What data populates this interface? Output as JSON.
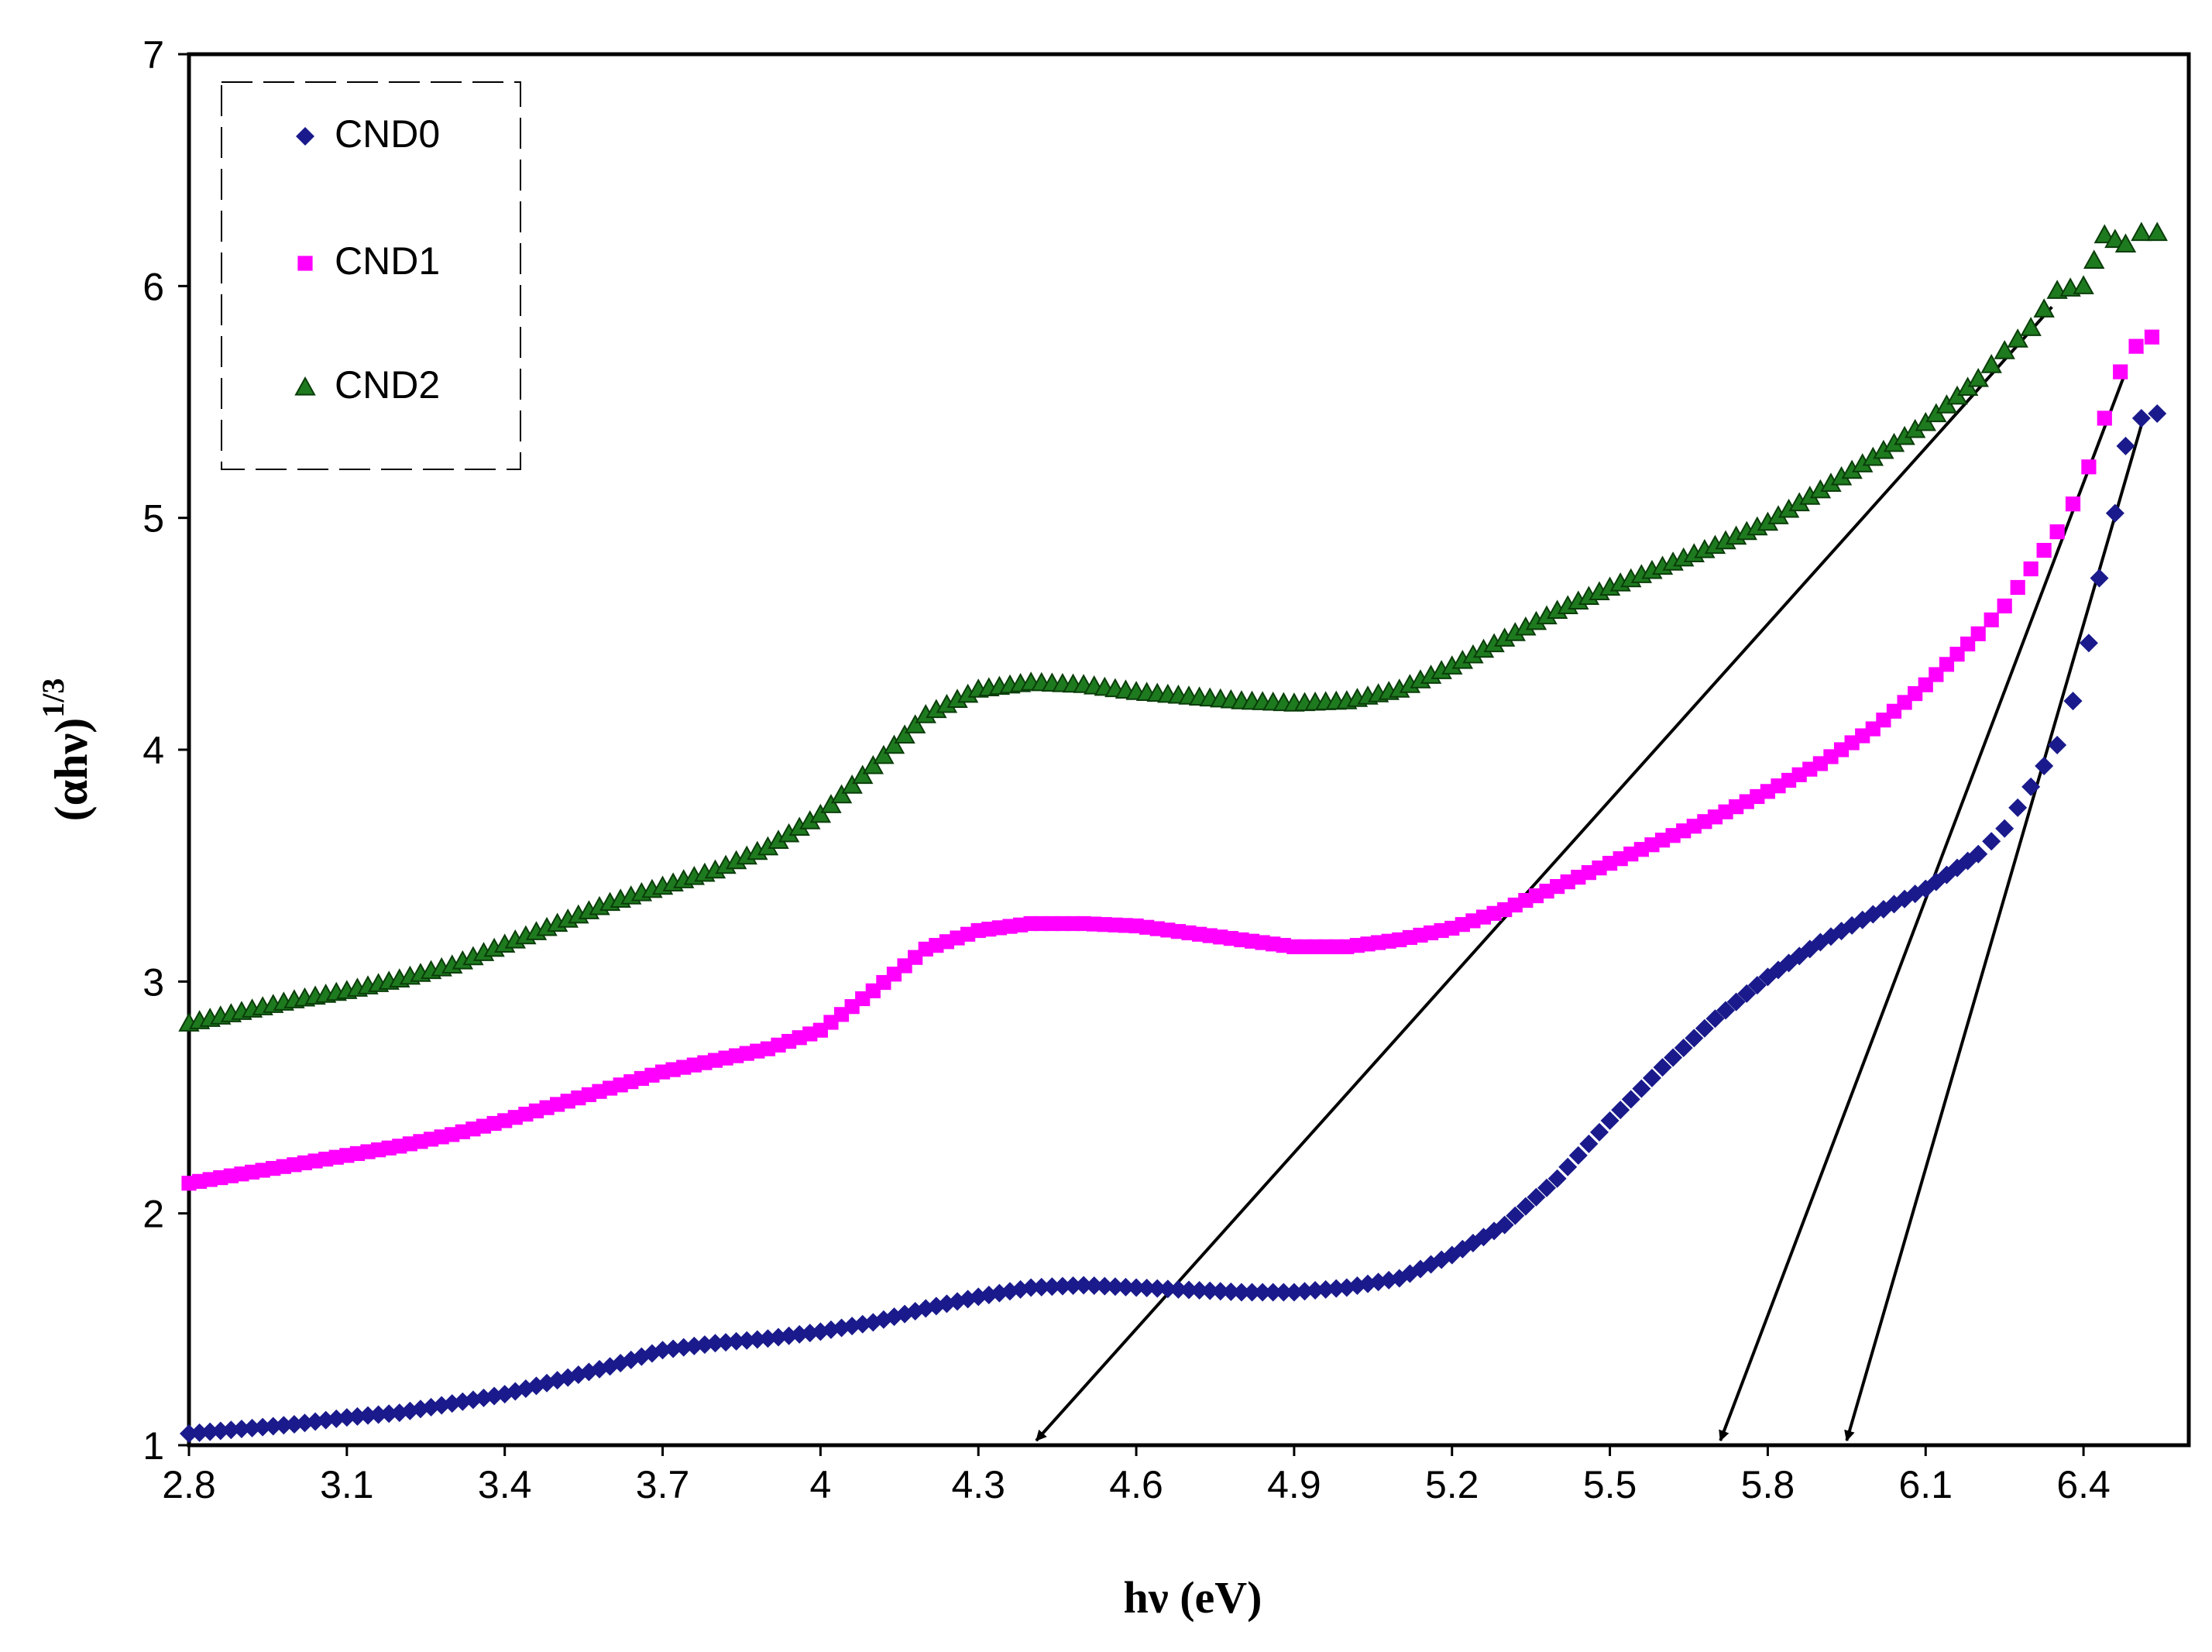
{
  "chart_data": {
    "type": "scatter",
    "title": "",
    "xlabel": "hν (eV)",
    "ylabel": "(αhν)",
    "ylabel_exponent": "1/3",
    "xlim": [
      2.8,
      6.6
    ],
    "ylim": [
      1,
      7
    ],
    "x_ticks": [
      "2.8",
      "3.1",
      "3.4",
      "3.7",
      "4",
      "4.3",
      "4.6",
      "4.9",
      "5.2",
      "5.5",
      "5.8",
      "6.1",
      "6.4"
    ],
    "y_ticks": [
      "1",
      "2",
      "3",
      "4",
      "5",
      "6",
      "7"
    ],
    "legend_position": "top-left",
    "series": [
      {
        "name": "CND0",
        "marker": "diamond",
        "color": "#1a1a8c",
        "points": [
          [
            2.8,
            1.05
          ],
          [
            2.9,
            1.07
          ],
          [
            3.0,
            1.09
          ],
          [
            3.1,
            1.12
          ],
          [
            3.2,
            1.14
          ],
          [
            3.3,
            1.18
          ],
          [
            3.4,
            1.22
          ],
          [
            3.5,
            1.28
          ],
          [
            3.6,
            1.34
          ],
          [
            3.7,
            1.41
          ],
          [
            3.8,
            1.44
          ],
          [
            3.9,
            1.46
          ],
          [
            4.0,
            1.49
          ],
          [
            4.1,
            1.53
          ],
          [
            4.2,
            1.59
          ],
          [
            4.3,
            1.64
          ],
          [
            4.4,
            1.68
          ],
          [
            4.5,
            1.69
          ],
          [
            4.6,
            1.68
          ],
          [
            4.7,
            1.67
          ],
          [
            4.8,
            1.66
          ],
          [
            4.9,
            1.66
          ],
          [
            5.0,
            1.68
          ],
          [
            5.1,
            1.72
          ],
          [
            5.2,
            1.82
          ],
          [
            5.3,
            1.95
          ],
          [
            5.4,
            2.15
          ],
          [
            5.5,
            2.4
          ],
          [
            5.6,
            2.63
          ],
          [
            5.7,
            2.84
          ],
          [
            5.8,
            3.02
          ],
          [
            5.9,
            3.17
          ],
          [
            6.0,
            3.29
          ],
          [
            6.1,
            3.4
          ],
          [
            6.2,
            3.55
          ],
          [
            6.25,
            3.66
          ],
          [
            6.3,
            3.84
          ],
          [
            6.35,
            4.02
          ],
          [
            6.38,
            4.21
          ],
          [
            6.41,
            4.46
          ],
          [
            6.43,
            4.74
          ],
          [
            6.46,
            5.02
          ],
          [
            6.48,
            5.31
          ],
          [
            6.51,
            5.43
          ],
          [
            6.54,
            5.45
          ]
        ]
      },
      {
        "name": "CND1",
        "marker": "square",
        "color": "#ff00ff",
        "points": [
          [
            2.8,
            2.13
          ],
          [
            2.9,
            2.17
          ],
          [
            3.0,
            2.21
          ],
          [
            3.1,
            2.25
          ],
          [
            3.2,
            2.29
          ],
          [
            3.3,
            2.34
          ],
          [
            3.4,
            2.4
          ],
          [
            3.5,
            2.47
          ],
          [
            3.6,
            2.54
          ],
          [
            3.7,
            2.61
          ],
          [
            3.8,
            2.66
          ],
          [
            3.9,
            2.71
          ],
          [
            4.0,
            2.79
          ],
          [
            4.1,
            2.96
          ],
          [
            4.2,
            3.14
          ],
          [
            4.3,
            3.22
          ],
          [
            4.4,
            3.25
          ],
          [
            4.5,
            3.25
          ],
          [
            4.6,
            3.24
          ],
          [
            4.7,
            3.21
          ],
          [
            4.8,
            3.18
          ],
          [
            4.9,
            3.15
          ],
          [
            5.0,
            3.15
          ],
          [
            5.1,
            3.18
          ],
          [
            5.2,
            3.23
          ],
          [
            5.3,
            3.31
          ],
          [
            5.4,
            3.41
          ],
          [
            5.5,
            3.51
          ],
          [
            5.6,
            3.61
          ],
          [
            5.7,
            3.71
          ],
          [
            5.8,
            3.82
          ],
          [
            5.9,
            3.94
          ],
          [
            6.0,
            4.09
          ],
          [
            6.1,
            4.28
          ],
          [
            6.2,
            4.5
          ],
          [
            6.25,
            4.62
          ],
          [
            6.3,
            4.78
          ],
          [
            6.35,
            4.94
          ],
          [
            6.38,
            5.06
          ],
          [
            6.41,
            5.22
          ],
          [
            6.44,
            5.43
          ],
          [
            6.47,
            5.63
          ],
          [
            6.5,
            5.74
          ],
          [
            6.53,
            5.78
          ]
        ]
      },
      {
        "name": "CND2",
        "marker": "triangle",
        "color": "#1e7a1e",
        "points": [
          [
            2.8,
            2.82
          ],
          [
            2.9,
            2.87
          ],
          [
            3.0,
            2.92
          ],
          [
            3.1,
            2.96
          ],
          [
            3.2,
            3.01
          ],
          [
            3.3,
            3.07
          ],
          [
            3.4,
            3.16
          ],
          [
            3.5,
            3.25
          ],
          [
            3.6,
            3.34
          ],
          [
            3.7,
            3.41
          ],
          [
            3.8,
            3.48
          ],
          [
            3.9,
            3.58
          ],
          [
            4.0,
            3.72
          ],
          [
            4.1,
            3.93
          ],
          [
            4.2,
            4.15
          ],
          [
            4.3,
            4.26
          ],
          [
            4.4,
            4.29
          ],
          [
            4.5,
            4.28
          ],
          [
            4.6,
            4.25
          ],
          [
            4.7,
            4.23
          ],
          [
            4.8,
            4.21
          ],
          [
            4.9,
            4.2
          ],
          [
            5.0,
            4.21
          ],
          [
            5.1,
            4.26
          ],
          [
            5.2,
            4.36
          ],
          [
            5.3,
            4.48
          ],
          [
            5.4,
            4.6
          ],
          [
            5.5,
            4.7
          ],
          [
            5.6,
            4.79
          ],
          [
            5.7,
            4.88
          ],
          [
            5.8,
            4.98
          ],
          [
            5.9,
            5.12
          ],
          [
            6.0,
            5.26
          ],
          [
            6.1,
            5.41
          ],
          [
            6.2,
            5.6
          ],
          [
            6.25,
            5.72
          ],
          [
            6.3,
            5.82
          ],
          [
            6.35,
            5.98
          ],
          [
            6.4,
            6.0
          ],
          [
            6.44,
            6.22
          ],
          [
            6.48,
            6.18
          ],
          [
            6.51,
            6.23
          ],
          [
            6.54,
            6.23
          ]
        ]
      }
    ],
    "tangent_lines": [
      {
        "series": "CND2",
        "from": [
          6.34,
          5.91
        ],
        "to": [
          4.41,
          1.0
        ],
        "intercept_ev": 4.41
      },
      {
        "series": "CND1",
        "from": [
          6.48,
          5.63
        ],
        "to": [
          5.71,
          1.0
        ],
        "intercept_ev": 5.71
      },
      {
        "series": "CND0",
        "from": [
          6.51,
          5.4
        ],
        "to": [
          5.95,
          1.0
        ],
        "intercept_ev": 5.95
      }
    ],
    "grid": false
  }
}
